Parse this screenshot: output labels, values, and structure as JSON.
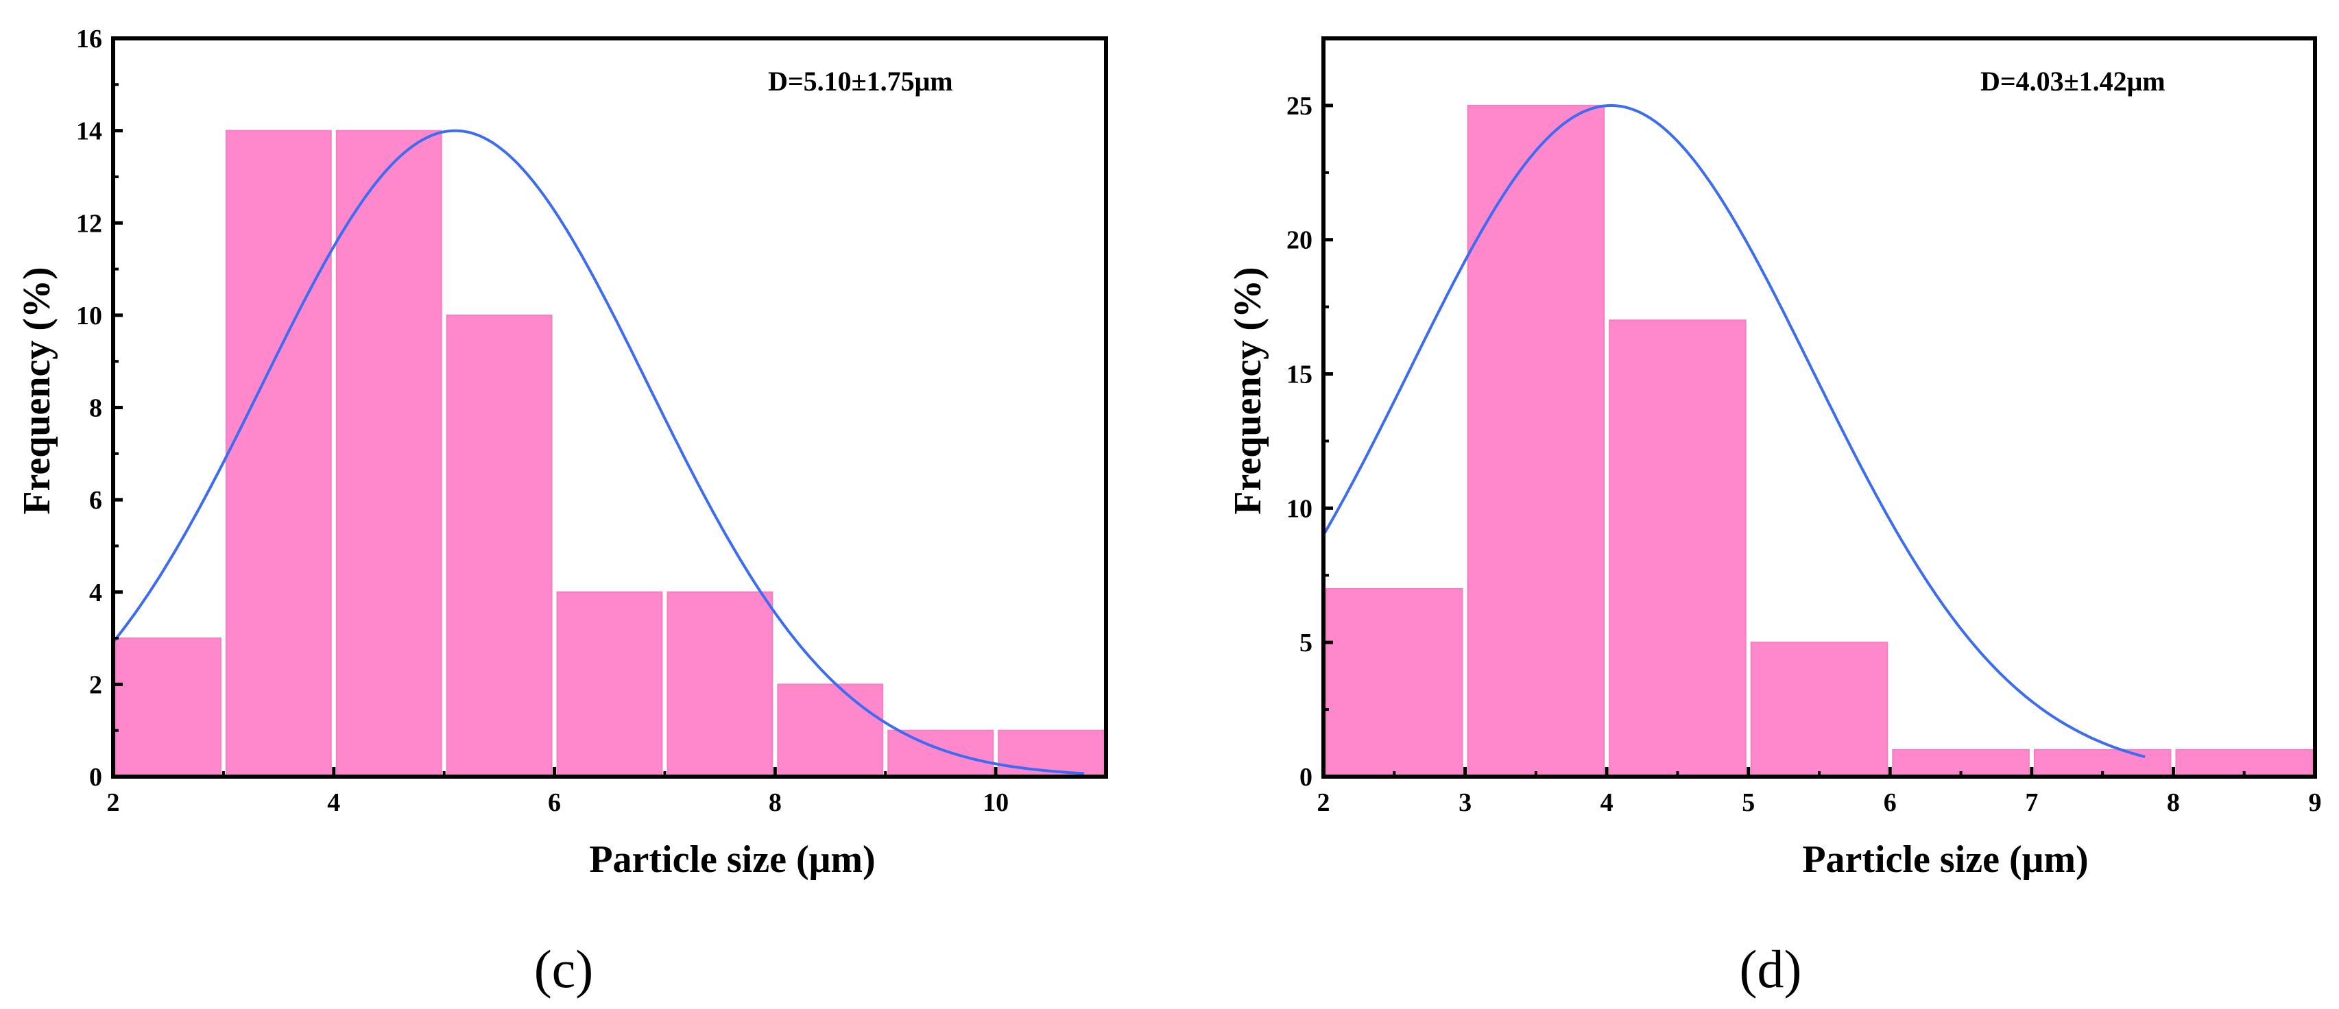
{
  "chart_data": [
    {
      "type": "bar",
      "panel_label": "(c)",
      "xlabel": "Particle size (μm)",
      "ylabel": "Frequency (%)",
      "annotation": "D=5.10±1.75μm",
      "xlim": [
        2,
        11
      ],
      "ylim": [
        0,
        16
      ],
      "x_ticks": [
        2,
        4,
        6,
        8,
        10
      ],
      "y_ticks": [
        0,
        2,
        4,
        6,
        8,
        10,
        12,
        14,
        16
      ],
      "bin_width": 1,
      "bins": [
        {
          "start": 2,
          "end": 3,
          "value": 3
        },
        {
          "start": 3,
          "end": 4,
          "value": 14
        },
        {
          "start": 4,
          "end": 5,
          "value": 14
        },
        {
          "start": 5,
          "end": 6,
          "value": 10
        },
        {
          "start": 6,
          "end": 7,
          "value": 4
        },
        {
          "start": 7,
          "end": 8,
          "value": 4
        },
        {
          "start": 8,
          "end": 9,
          "value": 2
        },
        {
          "start": 9,
          "end": 10,
          "value": 1
        },
        {
          "start": 10,
          "end": 11,
          "value": 1
        }
      ],
      "fit": {
        "type": "gaussian",
        "mean": 5.1,
        "sd": 1.75,
        "peak": 14,
        "x_range": [
          2,
          10.8
        ]
      },
      "bar_color": "#ff88cc",
      "curve_color": "#3d6cf0"
    },
    {
      "type": "bar",
      "panel_label": "(d)",
      "xlabel": "Particle size (μm)",
      "ylabel": "Frequency (%)",
      "annotation": "D=4.03±1.42μm",
      "xlim": [
        2,
        9
      ],
      "ylim": [
        0,
        27.5
      ],
      "x_ticks": [
        2,
        3,
        4,
        5,
        6,
        7,
        8,
        9
      ],
      "y_ticks": [
        0,
        5,
        10,
        15,
        20,
        25
      ],
      "bin_width": 1,
      "bins": [
        {
          "start": 2,
          "end": 3,
          "value": 7
        },
        {
          "start": 3,
          "end": 4,
          "value": 25
        },
        {
          "start": 4,
          "end": 5,
          "value": 17
        },
        {
          "start": 5,
          "end": 6,
          "value": 5
        },
        {
          "start": 6,
          "end": 7,
          "value": 1
        },
        {
          "start": 7,
          "end": 8,
          "value": 1
        },
        {
          "start": 8,
          "end": 9,
          "value": 1
        }
      ],
      "fit": {
        "type": "gaussian",
        "mean": 4.03,
        "sd": 1.42,
        "peak": 25,
        "x_range": [
          2,
          7.8
        ]
      },
      "bar_color": "#ff88cc",
      "curve_color": "#3d6cf0"
    }
  ]
}
